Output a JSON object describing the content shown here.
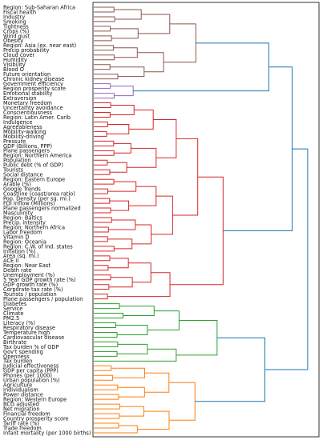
{
  "chart_data": {
    "type": "dendrogram",
    "orientation": "left",
    "title": "",
    "xlabel": "",
    "ylabel": "",
    "xaxis_visible": false,
    "yaxis_visible": false,
    "leaf_order": "top-to-bottom",
    "colors": {
      "brown": "#8c564b",
      "purple": "#9467bd",
      "red": "#d62728",
      "green": "#2ca02c",
      "orange": "#ff7f0e",
      "blue": "#1f77b4"
    },
    "leaves": [
      "Region: Sub-Saharan Africa",
      "Fiscal health",
      "Industry",
      "Smoking",
      "Tightness",
      "Crops (%)",
      "Wind gust",
      "Obesity",
      "Region: Asia (ex. near east)",
      "Precip probability",
      "Cloud cover",
      "Humidity",
      "Visibility",
      "Blood O",
      "Future orientation",
      "Chronic kidney disease",
      "Government efficiency",
      "Region prosperity score",
      "Emotional stability",
      "Extraversion",
      "Monetary freedom",
      "Uncertainty avoidance",
      "Conscientiousness",
      "Region: Latin Amer. Carib",
      "Indulgence",
      "Agreeableness",
      "Mobility-walking",
      "Mobility-driving",
      "Pressure",
      "GDP (Billions, PPP)",
      "Plane passengers",
      "Region: Northern America",
      "Population",
      "Public debt (% of GDP)",
      "Tourists",
      "Social distance",
      "Region: Eastern Europe",
      "Arable (%)",
      "Google Trends",
      "Coastline (coast/area ratio)",
      "Pop. Density (per sq. mi.)",
      "FDI Inflow (Millions)",
      "Plane passengers normalized",
      "Masculinity",
      "Region: Baltics",
      "Precip. intensity",
      "Region: Northern Africa",
      "Labor freedom",
      "Vitamin D",
      "Region: Oceania",
      "Region: C.W. of Ind. states",
      "Inflation (%)",
      "Area (sq. mi.)",
      "ACE II",
      "Region: Near East",
      "Death rate",
      "Unemployment (%)",
      "5 Year GDP growth rate (%)",
      "GDP growth rate (%)",
      "Corporate tax rate (%)",
      "Tourists / population",
      "Plane passengers / population",
      "Diabetes",
      "Service",
      "Climate",
      "PM2.5",
      "Literacy (%)",
      "Respiratory disease",
      "Temperature high",
      "Cardiovascular disease",
      "Birthrate",
      "Tax burden % of GDP",
      "Gov't spending",
      "Openness",
      "Tax burden",
      "Judicial effectiveness",
      "GDP per capita (PPP)",
      "Phones (per 1000)",
      "Urban population (%)",
      "Agriculture",
      "Individualism",
      "Power distance",
      "Region: Western Europe",
      "BCG adjusted",
      "Net migration",
      "Financial freedom",
      "Country prosperity score",
      "Tariff rate (%)",
      "Trade freedom",
      "Infant mortality (per 1000 births)"
    ],
    "clusters": [
      {
        "color": "brown",
        "first_leaf": 0,
        "last_leaf": 15,
        "merge_distance": 0.72
      },
      {
        "color": "purple",
        "first_leaf": 16,
        "last_leaf": 19,
        "merge_distance": 0.4
      },
      {
        "color": "red",
        "first_leaf": 20,
        "last_leaf": 61,
        "merge_distance": 0.7
      },
      {
        "color": "green",
        "first_leaf": 62,
        "last_leaf": 74,
        "merge_distance": 0.68
      },
      {
        "color": "orange",
        "first_leaf": 75,
        "last_leaf": 89,
        "merge_distance": 0.6
      }
    ],
    "top_links": [
      {
        "left": "brown",
        "right": "purple",
        "distance": 0.9,
        "color": "blue"
      },
      {
        "left": "brown+purple",
        "right": "red",
        "distance": 1.02,
        "color": "blue"
      },
      {
        "left": "green",
        "right": "orange",
        "distance": 0.88,
        "color": "blue"
      },
      {
        "left": "brown+purple+red",
        "right": "green+orange",
        "distance": 1.1,
        "color": "blue"
      }
    ]
  }
}
